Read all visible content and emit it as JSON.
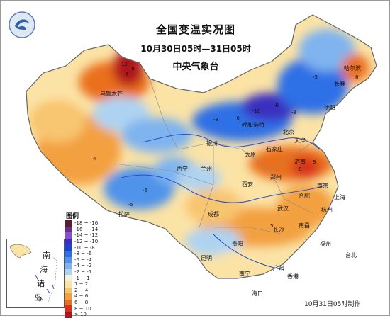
{
  "title": "全国变温实况图",
  "time_range": "10月30日05时—31日05时",
  "issuer": "中央气象台",
  "footer": "10月31日05时制作",
  "legend": {
    "title": "图例",
    "items": [
      {
        "label": "-18 ~ -16",
        "color": "#5a1f2f"
      },
      {
        "label": "-16 ~ -14",
        "color": "#6a2c8e"
      },
      {
        "label": "-14 ~ -12",
        "color": "#8a4fc6"
      },
      {
        "label": "-12 ~ -10",
        "color": "#3a2fc0"
      },
      {
        "label": "-10 ~ -8",
        "color": "#1a45d6"
      },
      {
        "label": "-8 ~ -6",
        "color": "#2f6fe6"
      },
      {
        "label": "-6 ~ -4",
        "color": "#4f93ea"
      },
      {
        "label": "-4 ~ -2",
        "color": "#7fb4ef"
      },
      {
        "label": "-2 ~ -1",
        "color": "#aed3f2"
      },
      {
        "label": "-1 ~ 1",
        "color": "#f4f1d8"
      },
      {
        "label": "1 ~ 2",
        "color": "#fbe3a6"
      },
      {
        "label": "2 ~ 4",
        "color": "#f8c56f"
      },
      {
        "label": "4 ~ 6",
        "color": "#f3a040"
      },
      {
        "label": "6 ~ 8",
        "color": "#ea6f1f"
      },
      {
        "label": "8 ~ 10",
        "color": "#d8331a"
      },
      {
        "label": "> 10",
        "color": "#b0141a"
      }
    ]
  },
  "inset_labels": [
    "南",
    "海",
    "诸",
    "岛"
  ],
  "cities": [
    {
      "name": "乌鲁木齐",
      "key": "urumqi"
    },
    {
      "name": "哈尔滨",
      "key": "harbin"
    },
    {
      "name": "长春",
      "key": "changchun"
    },
    {
      "name": "沈阳",
      "key": "shenyang"
    },
    {
      "name": "呼和浩特",
      "key": "hohhot"
    },
    {
      "name": "北京",
      "key": "beijing"
    },
    {
      "name": "天津",
      "key": "tianjin"
    },
    {
      "name": "石家庄",
      "key": "shijiazhuang"
    },
    {
      "name": "太原",
      "key": "taiyuan"
    },
    {
      "name": "银川",
      "key": "yinchuan"
    },
    {
      "name": "西宁",
      "key": "xining"
    },
    {
      "name": "兰州",
      "key": "lanzhou"
    },
    {
      "name": "济南",
      "key": "jinan"
    },
    {
      "name": "郑州",
      "key": "zhengzhou"
    },
    {
      "name": "西安",
      "key": "xian"
    },
    {
      "name": "南京",
      "key": "nanjing"
    },
    {
      "name": "合肥",
      "key": "hefei"
    },
    {
      "name": "上海",
      "key": "shanghai"
    },
    {
      "name": "武汉",
      "key": "wuhan"
    },
    {
      "name": "成都",
      "key": "chengdu"
    },
    {
      "name": "拉萨",
      "key": "lhasa"
    },
    {
      "name": "杭州",
      "key": "hangzhou"
    },
    {
      "name": "长沙",
      "key": "changsha"
    },
    {
      "name": "南昌",
      "key": "nanchang"
    },
    {
      "name": "贵阳",
      "key": "guiyang"
    },
    {
      "name": "福州",
      "key": "fuzhou"
    },
    {
      "name": "台北",
      "key": "taipei"
    },
    {
      "name": "昆明",
      "key": "kunming"
    },
    {
      "name": "南宁",
      "key": "nanning"
    },
    {
      "name": "广州",
      "key": "guangzhou"
    },
    {
      "name": "海口",
      "key": "haikou"
    },
    {
      "name": "香港",
      "key": "hongkong"
    }
  ]
}
